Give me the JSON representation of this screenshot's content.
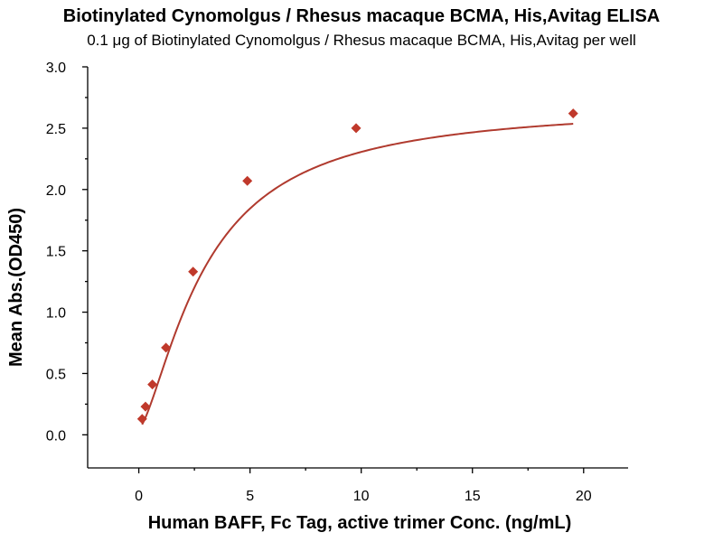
{
  "chart_data": {
    "type": "scatter",
    "title": "Biotinylated Cynomolgus / Rhesus macaque BCMA, His,Avitag ELISA",
    "subtitle": "0.1 μg of Biotinylated Cynomolgus / Rhesus macaque BCMA, His,Avitag per well",
    "xlabel": "Human BAFF, Fc Tag, active trimer Conc. (ng/mL)",
    "ylabel": "Mean Abs.(OD450)",
    "xlim": [
      -2.3,
      22
    ],
    "ylim": [
      -0.27,
      3.0
    ],
    "x_ticks": [
      0,
      5,
      10,
      15,
      20
    ],
    "x_tick_labels": [
      "0",
      "5",
      "10",
      "15",
      "20"
    ],
    "y_ticks": [
      0.0,
      0.5,
      1.0,
      1.5,
      2.0,
      2.5,
      3.0
    ],
    "y_tick_labels": [
      "0.0",
      "0.5",
      "1.0",
      "1.5",
      "2.0",
      "2.5",
      "3.0"
    ],
    "grid": false,
    "legend": "none",
    "series": [
      {
        "marker": "diamond",
        "color": "#c0392b",
        "x": [
          0.15,
          0.3,
          0.61,
          1.22,
          2.44,
          4.88,
          9.77,
          19.53
        ],
        "y": [
          0.13,
          0.23,
          0.41,
          0.71,
          1.33,
          2.07,
          2.5,
          2.62
        ]
      }
    ],
    "fit_curve": {
      "model": "4PL",
      "color": "#b03a2e",
      "bottom": 0.05,
      "top": 2.7,
      "ec50": 3.0,
      "hill": 1.45
    }
  }
}
